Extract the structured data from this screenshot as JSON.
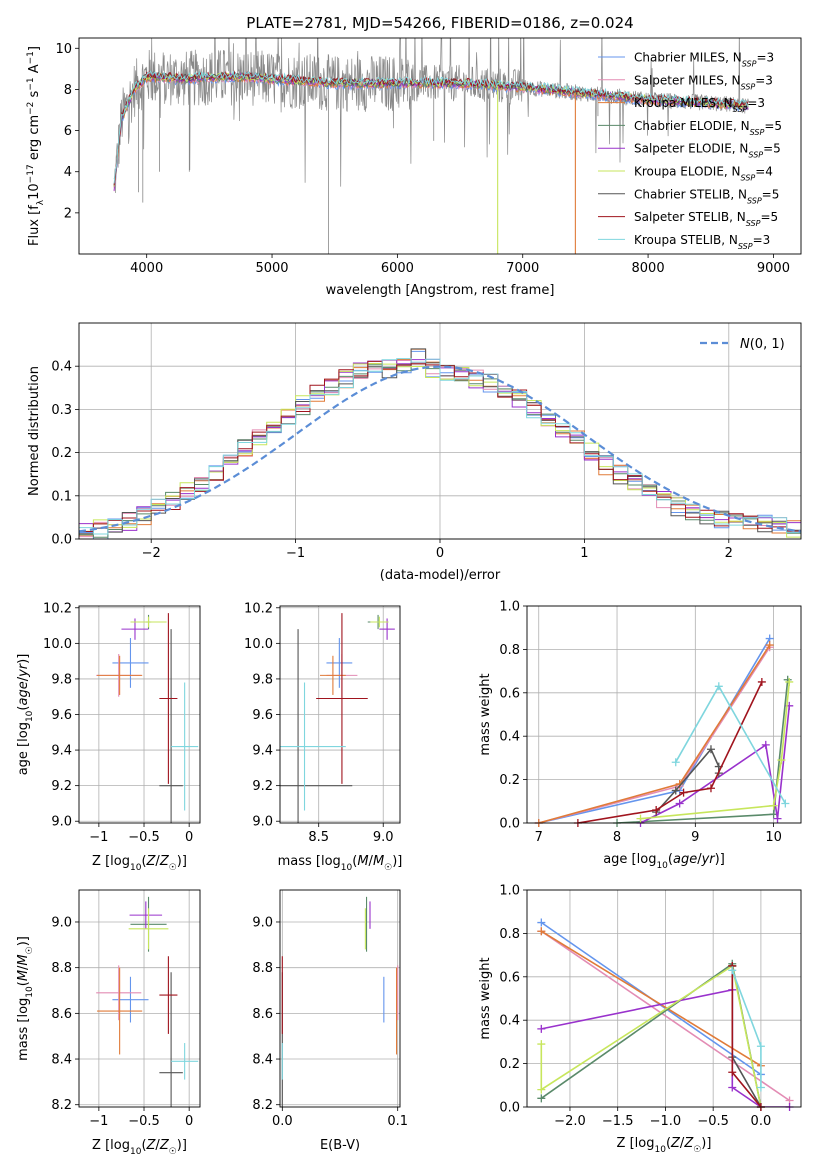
{
  "figure_title": "PLATE=2781, MJD=54266, FIBERID=0186, z=0.024",
  "colors": {
    "Chabrier MILES": "#6495ED",
    "Salpeter MILES": "#E38CB4",
    "Kroupa MILES": "#E07B39",
    "Chabrier ELODIE": "#5A8A6A",
    "Salpeter ELODIE": "#9932CC",
    "Kroupa ELODIE": "#C7E65C",
    "Chabrier STELIB": "#555555",
    "Salpeter STELIB": "#A0141E",
    "Kroupa STELIB": "#7FD6DE",
    "data": "#888888"
  },
  "chart_data": [
    {
      "id": "spectrum",
      "type": "line",
      "title": "",
      "xlabel": "wavelength [Angstrom, rest frame]",
      "ylabel": "Flux [f_λ 10^-17 erg cm^-2 s^-1 A^-1]",
      "xlim": [
        3460,
        9220
      ],
      "ylim": [
        0,
        10.5
      ],
      "xticks": [
        4000,
        5000,
        6000,
        7000,
        8000,
        9000
      ],
      "yticks": [
        2,
        4,
        6,
        8,
        10
      ],
      "legend_position": "top-right",
      "legend": [
        {
          "model": "Chabrier MILES",
          "label": "Chabrier MILES, N",
          "sub": "SSP",
          "tail": "=3"
        },
        {
          "model": "Salpeter MILES",
          "label": "Salpeter MILES, N",
          "sub": "SSP",
          "tail": "=3"
        },
        {
          "model": "Kroupa MILES",
          "label": "Kroupa MILES, N",
          "sub": "SSP",
          "tail": "=3"
        },
        {
          "model": "Chabrier ELODIE",
          "label": "Chabrier ELODIE, N",
          "sub": "SSP",
          "tail": "=5"
        },
        {
          "model": "Salpeter ELODIE",
          "label": "Salpeter ELODIE, N",
          "sub": "SSP",
          "tail": "=5"
        },
        {
          "model": "Kroupa ELODIE",
          "label": "Kroupa ELODIE, N",
          "sub": "SSP",
          "tail": "=4"
        },
        {
          "model": "Chabrier STELIB",
          "label": "Chabrier STELIB, N",
          "sub": "SSP",
          "tail": "=5"
        },
        {
          "model": "Salpeter STELIB",
          "label": "Salpeter STELIB, N",
          "sub": "SSP",
          "tail": "=5"
        },
        {
          "model": "Kroupa STELIB",
          "label": "Kroupa STELIB, N",
          "sub": "SSP",
          "tail": "=3"
        }
      ],
      "continuum": {
        "x": [
          3740,
          3800,
          3900,
          4000,
          4100,
          4300,
          4500,
          4800,
          5000,
          5500,
          6000,
          6500,
          7000,
          7200,
          7500,
          7700,
          8000,
          8300,
          8600,
          8800
        ],
        "y": [
          3.2,
          6.6,
          8.0,
          8.6,
          8.6,
          8.5,
          8.6,
          8.6,
          8.5,
          8.3,
          8.3,
          8.3,
          8.1,
          8.0,
          7.8,
          7.7,
          7.5,
          7.4,
          7.3,
          7.2
        ]
      },
      "data_x_range": [
        3740,
        8800
      ],
      "model_x_range": [
        3740,
        8800
      ],
      "model_dropouts": [
        {
          "model": "Kroupa ELODIE",
          "x": 6800
        },
        {
          "model": "Kroupa MILES",
          "x": 7420
        }
      ]
    },
    {
      "id": "residual_histogram",
      "type": "step",
      "xlabel": "(data-model)/error",
      "ylabel": "Normed distribution",
      "xlim": [
        -2.5,
        2.5
      ],
      "ylim": [
        0,
        0.5
      ],
      "xticks": [
        -2,
        -1,
        0,
        1,
        2
      ],
      "xticklabels": [
        "−2",
        "−1",
        "0",
        "1",
        "2"
      ],
      "yticks": [
        0,
        0.1,
        0.2,
        0.3,
        0.4
      ],
      "grid": true,
      "bin_edges_range": [
        -2.5,
        2.5
      ],
      "n_bins": 50,
      "reference_curve": {
        "label": "N(0,1)",
        "style": "dashed",
        "color": "#5B8DD6",
        "mu": 0,
        "sigma": 1
      },
      "legend_position": "top-right",
      "series_envelope": [
        0.015,
        0.022,
        0.03,
        0.042,
        0.055,
        0.07,
        0.09,
        0.108,
        0.128,
        0.15,
        0.18,
        0.21,
        0.235,
        0.26,
        0.285,
        0.31,
        0.335,
        0.355,
        0.37,
        0.385,
        0.39,
        0.395,
        0.405,
        0.42,
        0.395,
        0.39,
        0.38,
        0.37,
        0.36,
        0.34,
        0.325,
        0.3,
        0.275,
        0.25,
        0.23,
        0.2,
        0.17,
        0.15,
        0.13,
        0.11,
        0.09,
        0.075,
        0.065,
        0.055,
        0.048,
        0.045,
        0.04,
        0.035,
        0.03,
        0.025
      ]
    },
    {
      "id": "age_vs_Z",
      "type": "errorbar",
      "xlabel": "Z [log10(Z/Z☉)]",
      "ylabel": "age  [log10(age/yr)]",
      "xlim": [
        -1.22,
        0.12
      ],
      "ylim": [
        8.99,
        10.21
      ],
      "xticks": [
        -1,
        -0.5,
        0
      ],
      "xticklabels": [
        "−1",
        "−0.5",
        "0"
      ],
      "yticks": [
        9.0,
        9.2,
        9.4,
        9.6,
        9.8,
        10.0,
        10.2
      ],
      "grid": true,
      "points": [
        {
          "model": "Chabrier MILES",
          "x": -0.65,
          "xerr": 0.2,
          "y": 9.89,
          "yerr": 0.14
        },
        {
          "model": "Salpeter MILES",
          "x": -0.78,
          "xerr": 0.25,
          "y": 9.82,
          "yerr": 0.12
        },
        {
          "model": "Kroupa MILES",
          "x": -0.77,
          "xerr": 0.25,
          "y": 9.82,
          "yerr": 0.11
        },
        {
          "model": "Chabrier ELODIE",
          "x": -0.45,
          "xerr": 0.03,
          "y": 10.12,
          "yerr": 0.04
        },
        {
          "model": "Salpeter ELODIE",
          "x": -0.6,
          "xerr": 0.15,
          "y": 10.08,
          "yerr": 0.06
        },
        {
          "model": "Kroupa ELODIE",
          "x": -0.45,
          "xerr": 0.2,
          "y": 10.12,
          "yerr": 0.03
        },
        {
          "model": "Chabrier STELIB",
          "x": -0.2,
          "xerr": 0.13,
          "y": 9.2,
          "yerr": 0.88
        },
        {
          "model": "Salpeter STELIB",
          "x": -0.23,
          "xerr": 0.1,
          "y": 9.69,
          "yerr": 0.48
        },
        {
          "model": "Kroupa STELIB",
          "x": -0.05,
          "xerr": 0.15,
          "y": 9.42,
          "yerr": 0.36
        }
      ]
    },
    {
      "id": "age_vs_mass",
      "type": "errorbar",
      "xlabel": "mass [log10(M/M☉)]",
      "ylabel": "",
      "xlim": [
        8.2,
        9.13
      ],
      "ylim": [
        8.99,
        10.21
      ],
      "xticks": [
        8.5,
        9.0
      ],
      "yticks": [
        9.0,
        9.2,
        9.4,
        9.6,
        9.8,
        10.0,
        10.2
      ],
      "grid": true,
      "points": [
        {
          "model": "Chabrier MILES",
          "x": 8.66,
          "xerr": 0.1,
          "y": 9.89,
          "yerr": 0.14
        },
        {
          "model": "Salpeter MILES",
          "x": 8.68,
          "xerr": 0.12,
          "y": 9.82,
          "yerr": 0.12
        },
        {
          "model": "Kroupa MILES",
          "x": 8.61,
          "xerr": 0.1,
          "y": 9.82,
          "yerr": 0.11
        },
        {
          "model": "Chabrier ELODIE",
          "x": 8.96,
          "xerr": 0.08,
          "y": 10.12,
          "yerr": 0.04
        },
        {
          "model": "Salpeter ELODIE",
          "x": 9.03,
          "xerr": 0.06,
          "y": 10.08,
          "yerr": 0.06
        },
        {
          "model": "Kroupa ELODIE",
          "x": 8.97,
          "xerr": 0.07,
          "y": 10.12,
          "yerr": 0.03
        },
        {
          "model": "Chabrier STELIB",
          "x": 8.34,
          "xerr": 0.42,
          "y": 9.2,
          "yerr": 0.88
        },
        {
          "model": "Salpeter STELIB",
          "x": 8.68,
          "xerr": 0.2,
          "y": 9.69,
          "yerr": 0.48
        },
        {
          "model": "Kroupa STELIB",
          "x": 8.39,
          "xerr": 0.32,
          "y": 9.42,
          "yerr": 0.36
        }
      ]
    },
    {
      "id": "mass_weight_vs_age",
      "type": "line",
      "xlabel": "age  [log10(age/yr)]",
      "ylabel": "mass weight",
      "xlim": [
        6.85,
        10.35
      ],
      "ylim": [
        0,
        1.0
      ],
      "xticks": [
        7,
        8,
        9,
        10
      ],
      "yticks": [
        0.0,
        0.2,
        0.4,
        0.6,
        0.8,
        1.0
      ],
      "grid": true,
      "series": [
        {
          "model": "Chabrier MILES",
          "x": [
            7.0,
            8.8,
            9.95
          ],
          "y": [
            0.0,
            0.15,
            0.85
          ]
        },
        {
          "model": "Salpeter MILES",
          "x": [
            7.0,
            8.8,
            9.95
          ],
          "y": [
            0.0,
            0.17,
            0.81
          ]
        },
        {
          "model": "Kroupa MILES",
          "x": [
            7.0,
            8.8,
            9.95
          ],
          "y": [
            0.0,
            0.18,
            0.82
          ]
        },
        {
          "model": "Chabrier ELODIE",
          "x": [
            8.0,
            10.0,
            10.18
          ],
          "y": [
            0.0,
            0.04,
            0.66
          ]
        },
        {
          "model": "Salpeter ELODIE",
          "x": [
            8.3,
            8.8,
            9.9,
            10.05,
            10.2
          ],
          "y": [
            0.0,
            0.09,
            0.36,
            0.02,
            0.54
          ]
        },
        {
          "model": "Kroupa ELODIE",
          "x": [
            8.3,
            10.0,
            10.1,
            10.2
          ],
          "y": [
            0.02,
            0.08,
            0.29,
            0.65
          ]
        },
        {
          "model": "Chabrier STELIB",
          "x": [
            8.5,
            8.75,
            9.2,
            9.3,
            9.3
          ],
          "y": [
            0.05,
            0.15,
            0.34,
            0.26,
            0.23
          ]
        },
        {
          "model": "Salpeter STELIB",
          "x": [
            7.5,
            8.5,
            8.85,
            9.2,
            9.85
          ],
          "y": [
            0.0,
            0.06,
            0.14,
            0.16,
            0.65
          ]
        },
        {
          "model": "Kroupa STELIB",
          "x": [
            8.75,
            9.3,
            10.15
          ],
          "y": [
            0.28,
            0.63,
            0.09
          ]
        }
      ]
    },
    {
      "id": "mass_vs_Z",
      "type": "errorbar",
      "xlabel": "Z [log10(Z/Z☉)]",
      "ylabel": "mass [log10(M/M☉)]",
      "xlim": [
        -1.22,
        0.12
      ],
      "ylim": [
        8.19,
        9.14
      ],
      "xticks": [
        -1,
        -0.5,
        0
      ],
      "xticklabels": [
        "−1",
        "−0.5",
        "0"
      ],
      "yticks": [
        8.2,
        8.4,
        8.6,
        8.8,
        9.0
      ],
      "grid": true,
      "points": [
        {
          "model": "Chabrier MILES",
          "x": -0.65,
          "xerr": 0.2,
          "y": 8.66,
          "yerr": 0.1
        },
        {
          "model": "Salpeter MILES",
          "x": -0.78,
          "xerr": 0.25,
          "y": 8.69,
          "yerr": 0.12
        },
        {
          "model": "Kroupa MILES",
          "x": -0.77,
          "xerr": 0.25,
          "y": 8.61,
          "yerr": 0.19
        },
        {
          "model": "Chabrier ELODIE",
          "x": -0.45,
          "xerr": 0.2,
          "y": 8.99,
          "yerr": 0.12
        },
        {
          "model": "Salpeter ELODIE",
          "x": -0.48,
          "xerr": 0.18,
          "y": 9.03,
          "yerr": 0.06
        },
        {
          "model": "Kroupa ELODIE",
          "x": -0.45,
          "xerr": 0.22,
          "y": 8.97,
          "yerr": 0.09
        },
        {
          "model": "Chabrier STELIB",
          "x": -0.2,
          "xerr": 0.13,
          "y": 8.34,
          "yerr": 0.44
        },
        {
          "model": "Salpeter STELIB",
          "x": -0.23,
          "xerr": 0.1,
          "y": 8.68,
          "yerr": 0.17
        },
        {
          "model": "Kroupa STELIB",
          "x": -0.05,
          "xerr": 0.15,
          "y": 8.39,
          "yerr": 0.08
        }
      ]
    },
    {
      "id": "mass_vs_EBV",
      "type": "errorbar",
      "xlabel": "E(B-V)",
      "ylabel": "",
      "xlim": [
        -0.002,
        0.102
      ],
      "ylim": [
        8.19,
        9.14
      ],
      "xticks": [
        0.0,
        0.1
      ],
      "yticks": [
        8.2,
        8.4,
        8.6,
        8.8,
        9.0
      ],
      "grid": true,
      "points": [
        {
          "model": "Chabrier MILES",
          "x": 0.088,
          "y": 8.66,
          "yerr": 0.1
        },
        {
          "model": "Salpeter MILES",
          "x": 0.1,
          "y": 8.69,
          "yerr": 0.12
        },
        {
          "model": "Kroupa MILES",
          "x": 0.099,
          "y": 8.61,
          "yerr": 0.19
        },
        {
          "model": "Chabrier ELODIE",
          "x": 0.073,
          "y": 8.99,
          "yerr": 0.12
        },
        {
          "model": "Salpeter ELODIE",
          "x": 0.076,
          "y": 9.03,
          "yerr": 0.06
        },
        {
          "model": "Kroupa ELODIE",
          "x": 0.072,
          "y": 8.97,
          "yerr": 0.09
        },
        {
          "model": "Chabrier STELIB",
          "x": 0.0,
          "y": 8.34,
          "yerr": 0.44
        },
        {
          "model": "Salpeter STELIB",
          "x": 0.0,
          "y": 8.68,
          "yerr": 0.17
        },
        {
          "model": "Kroupa STELIB",
          "x": 0.0,
          "y": 8.39,
          "yerr": 0.08
        }
      ]
    },
    {
      "id": "mass_weight_vs_Z",
      "type": "line",
      "xlabel": "Z [log10(Z/Z☉)]",
      "ylabel": "mass weight",
      "xlim": [
        -2.45,
        0.42
      ],
      "ylim": [
        0,
        1.0
      ],
      "xticks": [
        -2.0,
        -1.5,
        -1.0,
        -0.5,
        0.0
      ],
      "xticklabels": [
        "−2.0",
        "−1.5",
        "−1.0",
        "−0.5",
        "0.0"
      ],
      "yticks": [
        0.0,
        0.2,
        0.4,
        0.6,
        0.8,
        1.0
      ],
      "grid": true,
      "series": [
        {
          "model": "Chabrier MILES",
          "x": [
            -2.3,
            0.0
          ],
          "y": [
            0.85,
            0.15
          ]
        },
        {
          "model": "Salpeter MILES",
          "x": [
            -2.3,
            0.3
          ],
          "y": [
            0.81,
            0.03
          ]
        },
        {
          "model": "Kroupa MILES",
          "x": [
            -2.3,
            0.0
          ],
          "y": [
            0.81,
            0.19
          ]
        },
        {
          "model": "Chabrier ELODIE",
          "x": [
            -2.3,
            -0.3,
            0.0
          ],
          "y": [
            0.04,
            0.66,
            0.0
          ]
        },
        {
          "model": "Salpeter ELODIE",
          "x": [
            -2.3,
            -0.3,
            -0.3,
            0.0,
            0.3
          ],
          "y": [
            0.36,
            0.54,
            0.09,
            0.0,
            0.0
          ]
        },
        {
          "model": "Kroupa ELODIE",
          "x": [
            -2.3,
            -2.3,
            -0.3,
            0.0
          ],
          "y": [
            0.29,
            0.08,
            0.65,
            0.0
          ]
        },
        {
          "model": "Chabrier STELIB",
          "x": [
            -0.3,
            -0.3,
            0.0
          ],
          "y": [
            0.65,
            0.23,
            0.0
          ]
        },
        {
          "model": "Salpeter STELIB",
          "x": [
            -0.3,
            -0.3,
            0.0
          ],
          "y": [
            0.65,
            0.16,
            0.0
          ]
        },
        {
          "model": "Kroupa STELIB",
          "x": [
            -0.3,
            0.0,
            0.0
          ],
          "y": [
            0.63,
            0.28,
            0.09
          ]
        }
      ]
    }
  ]
}
